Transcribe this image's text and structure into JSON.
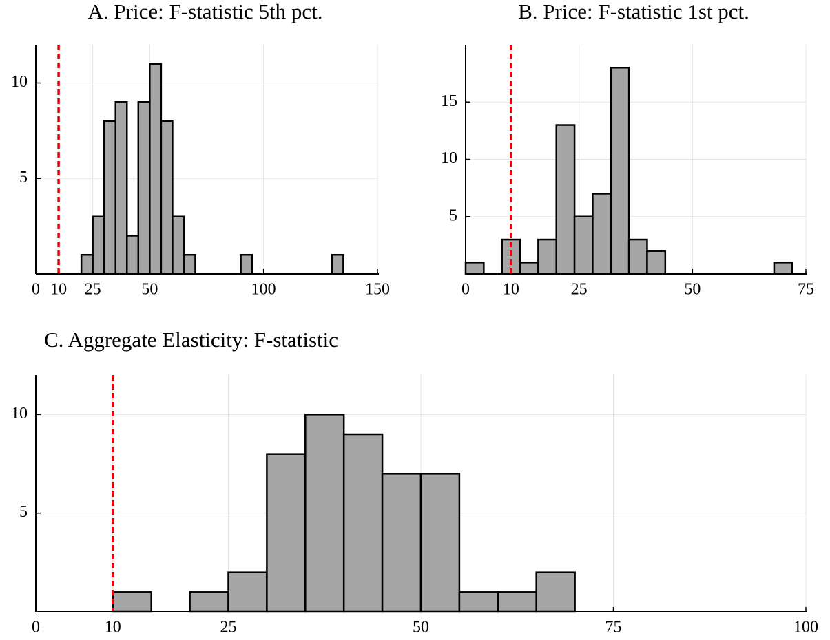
{
  "chart_data": [
    {
      "type": "histogram",
      "title": "A. Price: F-statistic 5th pct.",
      "bins": [
        20,
        25,
        30,
        35,
        40,
        45,
        50,
        55,
        60,
        65,
        70,
        75,
        80,
        85,
        90,
        95,
        100,
        105,
        110,
        115,
        120,
        125,
        130,
        135
      ],
      "counts": [
        1,
        3,
        8,
        9,
        2,
        9,
        11,
        8,
        3,
        1,
        0,
        0,
        0,
        0,
        1,
        0,
        0,
        0,
        0,
        0,
        0,
        0,
        1
      ],
      "color": "#a6a6a6",
      "xlim": [
        0,
        150
      ],
      "xticks": [
        0,
        10,
        25,
        50,
        100,
        150
      ],
      "ylim": [
        0,
        12
      ],
      "yticks": [
        5,
        10
      ],
      "grid": true,
      "reference_line": {
        "x": 10,
        "color": "#e8000b"
      }
    },
    {
      "type": "histogram",
      "title": "B. Price: F-statistic 1st pct.",
      "bins": [
        0,
        4,
        8,
        12,
        16,
        20,
        24,
        28,
        32,
        36,
        40,
        44,
        48,
        52,
        56,
        60,
        64,
        68,
        72
      ],
      "counts": [
        1,
        0,
        3,
        1,
        3,
        13,
        5,
        7,
        18,
        3,
        2,
        0,
        0,
        0,
        0,
        0,
        0,
        1
      ],
      "color": "#a6a6a6",
      "xlim": [
        0,
        75
      ],
      "xticks": [
        0,
        10,
        25,
        50,
        75
      ],
      "ylim": [
        0,
        20
      ],
      "yticks": [
        5,
        10,
        15
      ],
      "grid": true,
      "reference_line": {
        "x": 10,
        "color": "#e8000b"
      }
    },
    {
      "type": "histogram",
      "title": "C. Aggregate Elasticity: F-statistic",
      "bins": [
        10,
        15,
        20,
        25,
        30,
        35,
        40,
        45,
        50,
        55,
        60,
        65,
        70
      ],
      "counts": [
        1,
        0,
        1,
        2,
        8,
        10,
        9,
        7,
        7,
        1,
        1,
        2
      ],
      "color": "#a6a6a6",
      "xlim": [
        0,
        100
      ],
      "xticks": [
        0,
        10,
        25,
        50,
        75,
        100
      ],
      "ylim": [
        0,
        12
      ],
      "yticks": [
        5,
        10
      ],
      "grid": true,
      "reference_line": {
        "x": 10,
        "color": "#e8000b"
      }
    }
  ]
}
